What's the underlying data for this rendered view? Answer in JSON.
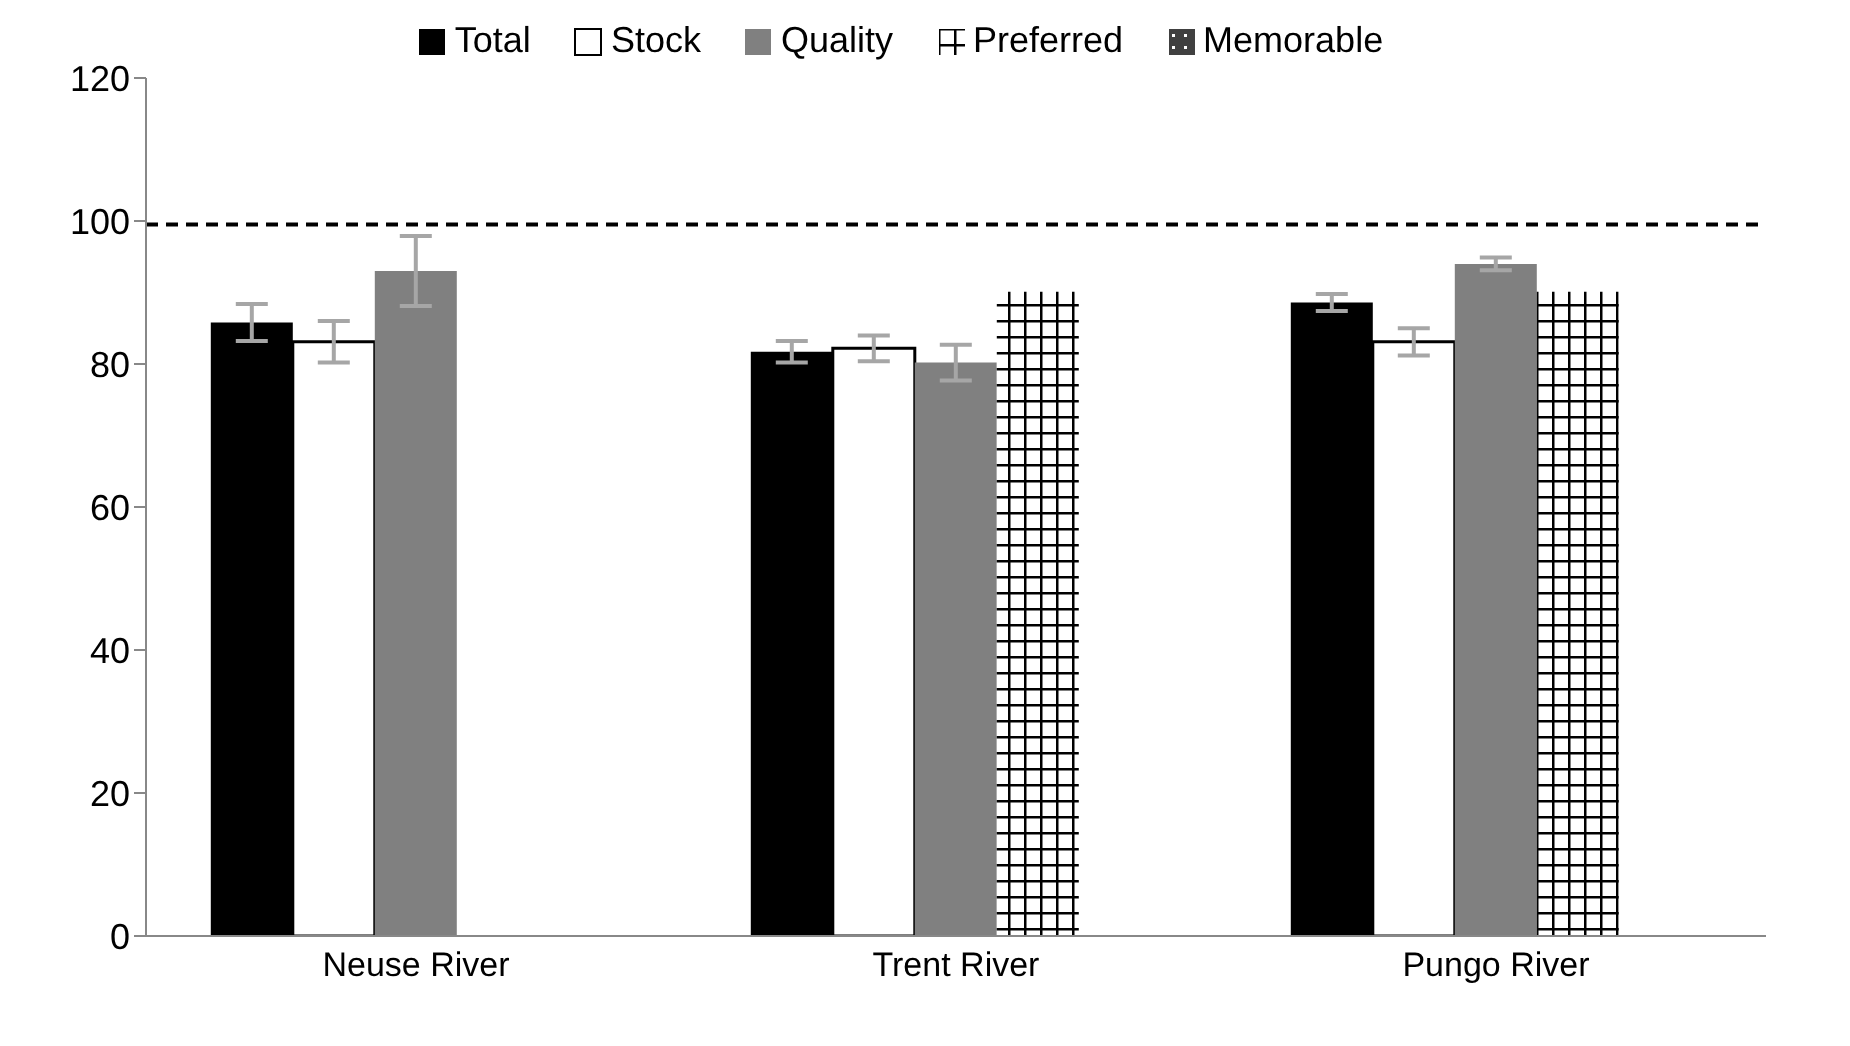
{
  "chart_data": {
    "type": "bar",
    "categories": [
      "Neuse River",
      "Trent River",
      "Pungo River"
    ],
    "series": [
      {
        "name": "Total",
        "color": "#000000",
        "values": [
          85.8,
          81.7,
          88.6
        ],
        "errors": [
          2.6,
          1.5,
          1.2
        ]
      },
      {
        "name": "Stock",
        "color": "#ffffff",
        "values": [
          83.1,
          82.2,
          83.1
        ],
        "errors": [
          2.9,
          1.8,
          1.9
        ]
      },
      {
        "name": "Quality",
        "color": "#808080",
        "values": [
          93.0,
          80.2,
          94.0
        ],
        "errors": [
          4.9,
          2.5,
          0.9
        ]
      },
      {
        "name": "Preferred",
        "color": "#000000",
        "values": [
          null,
          90.1,
          90.1
        ]
      },
      {
        "name": "Memorable",
        "color": "#404040",
        "values": [
          null,
          null,
          null
        ]
      }
    ],
    "ylim": [
      0,
      120
    ],
    "yticks": [
      0,
      20,
      40,
      60,
      80,
      100,
      120
    ],
    "grid": false,
    "legend": "top",
    "ref_lines": [
      {
        "axis": "y",
        "value": 99.5,
        "color": "#000000",
        "line_style": "dashed"
      }
    ]
  }
}
